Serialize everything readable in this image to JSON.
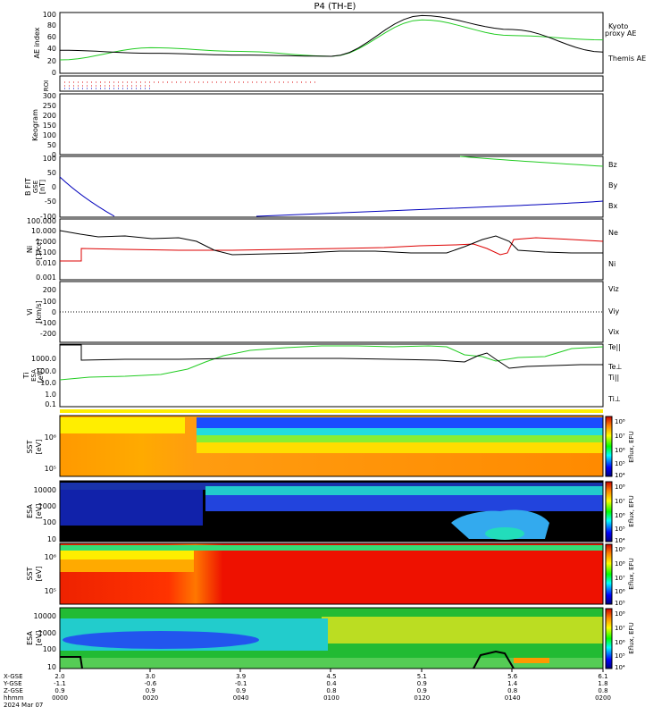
{
  "title": "P4 (TH-E)",
  "colors": {
    "green": "#22cc22",
    "black": "#000000",
    "red": "#dd0000",
    "blue": "#0000bb",
    "yellow": "#ffee00"
  },
  "panels": {
    "ae": {
      "ylabel": "AE index",
      "yticks": [
        "100",
        "80",
        "60",
        "40",
        "20",
        "0"
      ],
      "legend": [
        "Kyoto",
        "proxy AE",
        "Themis AE"
      ]
    },
    "roi": {
      "ylabel": "ROI"
    },
    "keogram": {
      "ylabel": "Keogram",
      "yticks": [
        "300",
        "250",
        "200",
        "150",
        "100",
        "50",
        "0"
      ]
    },
    "bfgm": {
      "ylabel_lines": [
        "B FIT",
        "GSE",
        "[nT]"
      ],
      "yticks": [
        "100",
        "50",
        "0",
        "-50",
        "-100"
      ],
      "legend": [
        "Bz",
        "By",
        "Bx"
      ]
    },
    "ni": {
      "ylabel_lines": [
        "Ni",
        "[1/cc]"
      ],
      "yticks": [
        "100.000",
        "10.000",
        "1.000",
        "0.100",
        "0.010",
        "0.001"
      ],
      "legend": [
        "Ne",
        "Ni"
      ]
    },
    "vi": {
      "ylabel_lines": [
        "Vi",
        "[km/s]"
      ],
      "yticks": [
        "200",
        "100",
        "0",
        "-100",
        "-200"
      ],
      "legend": [
        "Viz",
        "Viy",
        "Vix"
      ]
    },
    "ti": {
      "ylabel_lines": [
        "Ti",
        "ESA",
        "[eV]"
      ],
      "yticks": [
        "1000.0",
        "100.0",
        "10.0",
        "1.0",
        "0.1"
      ],
      "legend": [
        "Te||",
        "Te⊥",
        "Ti||",
        "Ti⊥"
      ]
    },
    "sst_e": {
      "ylabel_lines": [
        "SST",
        "[eV]"
      ],
      "yticks": [
        "10⁶",
        "10⁵"
      ],
      "cbar_ticks": [
        "10⁸",
        "10⁷",
        "10⁶",
        "10⁵",
        "10⁴"
      ],
      "cbar_label": "Eflux, EFU"
    },
    "esa_e": {
      "ylabel_lines": [
        "ESA",
        "[eV]"
      ],
      "yticks": [
        "10000",
        "1000",
        "100",
        "10"
      ],
      "cbar_ticks": [
        "10⁸",
        "10⁷",
        "10⁶",
        "10⁵",
        "10⁴"
      ],
      "cbar_label": "Eflux, EFU"
    },
    "sst_i": {
      "ylabel_lines": [
        "SST",
        "[eV]"
      ],
      "yticks": [
        "10⁶",
        "10⁵"
      ],
      "cbar_ticks": [
        "10⁹",
        "10⁸",
        "10⁷",
        "10⁶",
        "10⁵"
      ],
      "cbar_label": "Eflux, EFU"
    },
    "esa_i": {
      "ylabel_lines": [
        "ESA",
        "[eV]"
      ],
      "yticks": [
        "10000",
        "1000",
        "100",
        "10"
      ],
      "cbar_ticks": [
        "10⁸",
        "10⁷",
        "10⁶",
        "10⁵",
        "10⁴"
      ],
      "cbar_label": "Eflux, EFU"
    }
  },
  "xaxis": {
    "row_labels": [
      "X-GSE",
      "Y-GSE",
      "Z-GSE",
      "hhmm",
      "2024 Mar 07"
    ],
    "columns": [
      {
        "x": "2.0",
        "y": "-1.1",
        "z": "0.9",
        "t": "0000"
      },
      {
        "x": "3.0",
        "y": "-0.6",
        "z": "0.9",
        "t": "0020"
      },
      {
        "x": "3.9",
        "y": "-0.1",
        "z": "0.9",
        "t": "0040"
      },
      {
        "x": "4.5",
        "y": "0.4",
        "z": "0.8",
        "t": "0100"
      },
      {
        "x": "5.1",
        "y": "0.9",
        "z": "0.9",
        "t": "0120"
      },
      {
        "x": "5.6",
        "y": "1.4",
        "z": "0.8",
        "t": "0140"
      },
      {
        "x": "6.1",
        "y": "1.8",
        "z": "0.8",
        "t": "0200"
      }
    ]
  },
  "chart_data": {
    "type": "line",
    "title": "P4 (TH-E)",
    "x": [
      "0000",
      "0020",
      "0040",
      "0100",
      "0120",
      "0140",
      "0200"
    ],
    "series": [
      {
        "name": "Kyoto proxy AE",
        "values": [
          22,
          42,
          36,
          28,
          88,
          62,
          55
        ]
      },
      {
        "name": "Themis AE",
        "values": [
          38,
          33,
          30,
          28,
          95,
          72,
          35
        ]
      }
    ],
    "ylabel": "AE index",
    "ylim": [
      0,
      100
    ]
  }
}
